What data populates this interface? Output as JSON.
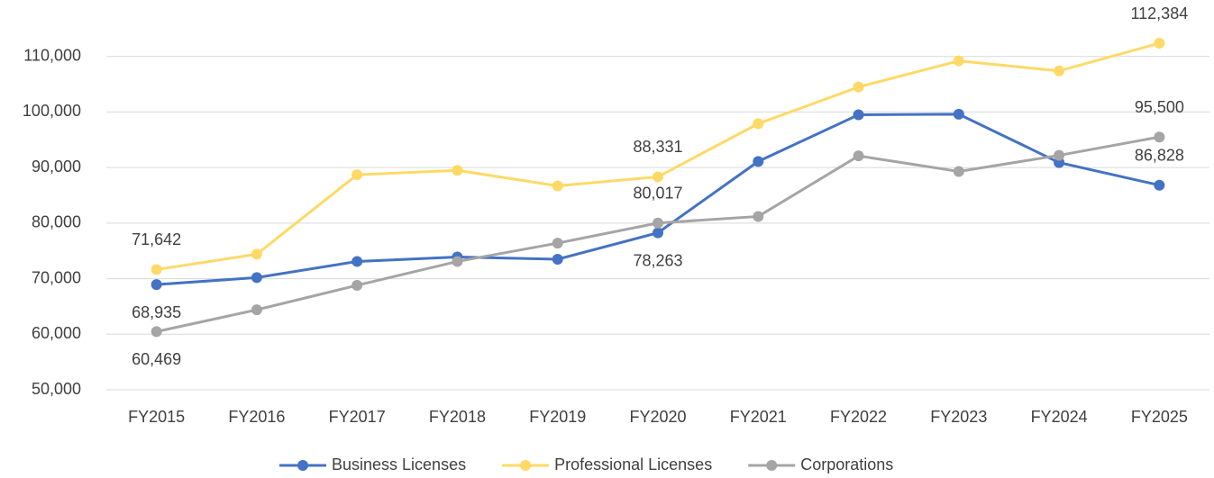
{
  "chart_data": {
    "type": "line",
    "categories": [
      "FY2015",
      "FY2016",
      "FY2017",
      "FY2018",
      "FY2019",
      "FY2020",
      "FY2021",
      "FY2022",
      "FY2023",
      "FY2024",
      "FY2025"
    ],
    "series": [
      {
        "name": "Business Licenses",
        "color": "#4472c4",
        "values": [
          68935,
          70200,
          73100,
          73900,
          73500,
          78263,
          91100,
          99500,
          99600,
          90900,
          86828
        ],
        "value_labels": [
          "68,935",
          null,
          null,
          null,
          null,
          "78,263",
          null,
          null,
          null,
          null,
          "86,828"
        ]
      },
      {
        "name": "Professional Licenses",
        "color": "#ffd966",
        "values": [
          71642,
          74400,
          88700,
          89500,
          86700,
          88331,
          97900,
          104500,
          109200,
          107400,
          112384
        ],
        "value_labels": [
          "71,642",
          null,
          null,
          null,
          null,
          "88,331",
          null,
          null,
          null,
          null,
          "112,384"
        ]
      },
      {
        "name": "Corporations",
        "color": "#a5a5a5",
        "values": [
          60469,
          64400,
          68800,
          73100,
          76400,
          80017,
          81200,
          92100,
          89300,
          92200,
          95500
        ],
        "value_labels": [
          "60,469",
          null,
          null,
          null,
          null,
          "80,017",
          null,
          null,
          null,
          null,
          "95,500"
        ]
      }
    ],
    "ylim": [
      50000,
      120000
    ],
    "yticks": [
      {
        "value": 50000,
        "label": "50,000"
      },
      {
        "value": 60000,
        "label": "60,000"
      },
      {
        "value": 70000,
        "label": "70,000"
      },
      {
        "value": 80000,
        "label": "80,000"
      },
      {
        "value": 90000,
        "label": "90,000"
      },
      {
        "value": 100000,
        "label": "100,000"
      },
      {
        "value": 110000,
        "label": "110,000"
      }
    ],
    "grid": true,
    "legend": "bottom"
  }
}
